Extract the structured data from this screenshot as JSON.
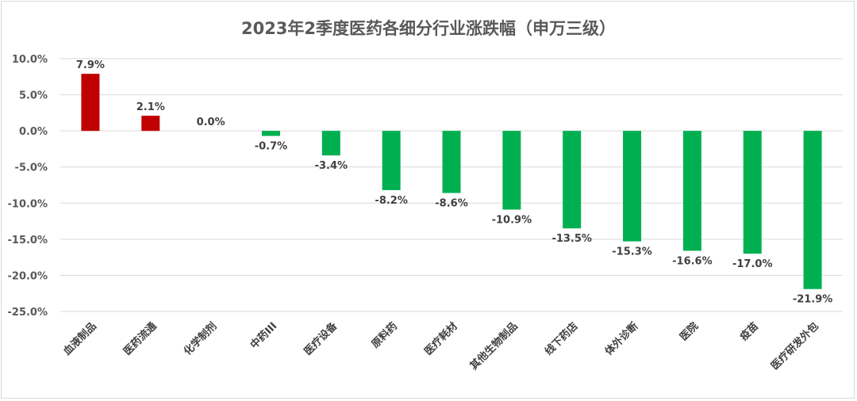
{
  "chart_data": {
    "type": "bar",
    "title": "2023年2季度医药各细分行业涨跌幅（申万三级）",
    "xlabel": "",
    "ylabel": "",
    "categories": [
      "血液制品",
      "医药流通",
      "化学制剂",
      "中药III",
      "医疗设备",
      "原料药",
      "医疗耗材",
      "其他生物制品",
      "线下药店",
      "体外诊断",
      "医院",
      "疫苗",
      "医疗研发外包"
    ],
    "values": [
      7.9,
      2.1,
      0.0,
      -0.7,
      -3.4,
      -8.2,
      -8.6,
      -10.9,
      -13.5,
      -15.3,
      -16.6,
      -17.0,
      -21.9
    ],
    "data_labels": [
      "7.9%",
      "2.1%",
      "0.0%",
      "-0.7%",
      "-3.4%",
      "-8.2%",
      "-8.6%",
      "-10.9%",
      "-13.5%",
      "-15.3%",
      "-16.6%",
      "-17.0%",
      "-21.9%"
    ],
    "ylim": [
      -25,
      10
    ],
    "yticks": [
      10,
      5,
      0,
      -5,
      -10,
      -15,
      -20,
      -25
    ],
    "ytick_labels": [
      "10.0%",
      "5.0%",
      "0.0%",
      "-5.0%",
      "-10.0%",
      "-15.0%",
      "-20.0%",
      "-25.0%"
    ],
    "grid": true,
    "legend": "none",
    "colors": {
      "positive": "#c00000",
      "negative": "#00b050",
      "grid": "#d9d9d9",
      "text": "#595959"
    }
  }
}
